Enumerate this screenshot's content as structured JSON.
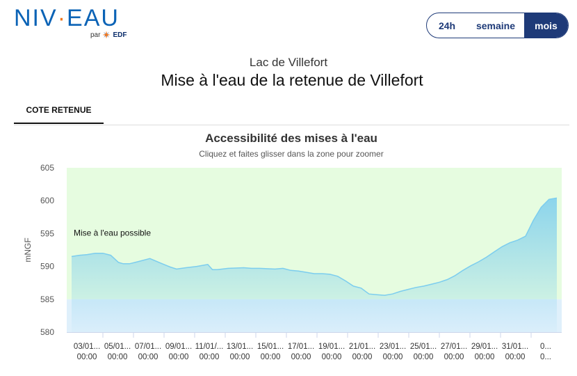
{
  "brand": {
    "logo_part1": "NIV",
    "logo_dot": "·",
    "logo_part2": "EAU",
    "by_label": "par",
    "edf_label": "EDF",
    "brand_color": "#0b63b6",
    "accent_color": "#f07820"
  },
  "period_toggle": {
    "options": [
      "24h",
      "semaine",
      "mois"
    ],
    "selected": "mois"
  },
  "header": {
    "lake_name": "Lac de Villefort",
    "page_title": "Mise à l'eau de la retenue de Villefort"
  },
  "tabs": [
    {
      "label": "COTE RETENUE",
      "active": true
    }
  ],
  "chart_data": {
    "type": "area",
    "title": "Accessibilité des mises à l'eau",
    "subtitle": "Cliquez et faites glisser dans la zone pour zoomer",
    "ylabel": "mNGF",
    "xlabel": "",
    "ylim": [
      580,
      605
    ],
    "yticks": [
      580,
      585,
      590,
      595,
      600,
      605
    ],
    "xticks": [
      "03/01... 00:00",
      "05/01... 00:00",
      "07/01... 00:00",
      "09/01... 00:00",
      "11/01/... 00:00",
      "13/01... 00:00",
      "15/01... 00:00",
      "17/01... 00:00",
      "19/01... 00:00",
      "21/01... 00:00",
      "23/01... 00:00",
      "25/01... 00:00",
      "27/01... 00:00",
      "29/01... 00:00",
      "31/01... 00:00",
      "0... 0..."
    ],
    "band": {
      "label": "Mise à l'eau possible",
      "from": 585,
      "to": 605,
      "color": "#e6fce0"
    },
    "lower_band_color": "#dff0fb",
    "series_color": "#7ccdee",
    "x_start": 2.0,
    "x_end": 33.0,
    "series": [
      {
        "x": [
          2.0,
          2.5,
          3.0,
          3.5,
          4.0,
          4.5,
          5.0,
          5.3,
          5.7,
          6.2,
          7.0,
          7.7,
          8.3,
          8.7,
          9.3,
          10.0,
          10.7,
          11.0,
          11.3,
          12.0,
          13.0,
          13.5,
          14.0,
          15.0,
          15.5,
          16.0,
          16.5,
          17.0,
          17.5,
          18.0,
          18.5,
          19.0,
          19.5,
          20.0,
          20.5,
          21.0,
          21.5,
          22.0,
          22.5,
          23.0,
          23.5,
          24.0,
          24.5,
          25.0,
          25.5,
          26.0,
          26.5,
          27.0,
          27.5,
          28.0,
          28.5,
          29.0,
          29.5,
          30.0,
          30.5,
          31.0,
          31.5,
          32.0,
          32.5,
          33.0
        ],
        "y": [
          591.5,
          591.7,
          591.8,
          592.0,
          592.0,
          591.7,
          590.6,
          590.4,
          590.4,
          590.7,
          591.2,
          590.5,
          589.9,
          589.6,
          589.8,
          590.0,
          590.3,
          589.5,
          589.5,
          589.7,
          589.8,
          589.7,
          589.7,
          589.6,
          589.7,
          589.4,
          589.3,
          589.1,
          588.9,
          588.9,
          588.8,
          588.5,
          587.8,
          587.0,
          586.7,
          585.8,
          585.7,
          585.6,
          585.8,
          586.2,
          586.5,
          586.8,
          587.0,
          587.3,
          587.6,
          588.0,
          588.6,
          589.4,
          590.1,
          590.7,
          591.4,
          592.2,
          593.0,
          593.6,
          594.0,
          594.6,
          597.0,
          599.0,
          600.2,
          600.4
        ]
      }
    ]
  }
}
